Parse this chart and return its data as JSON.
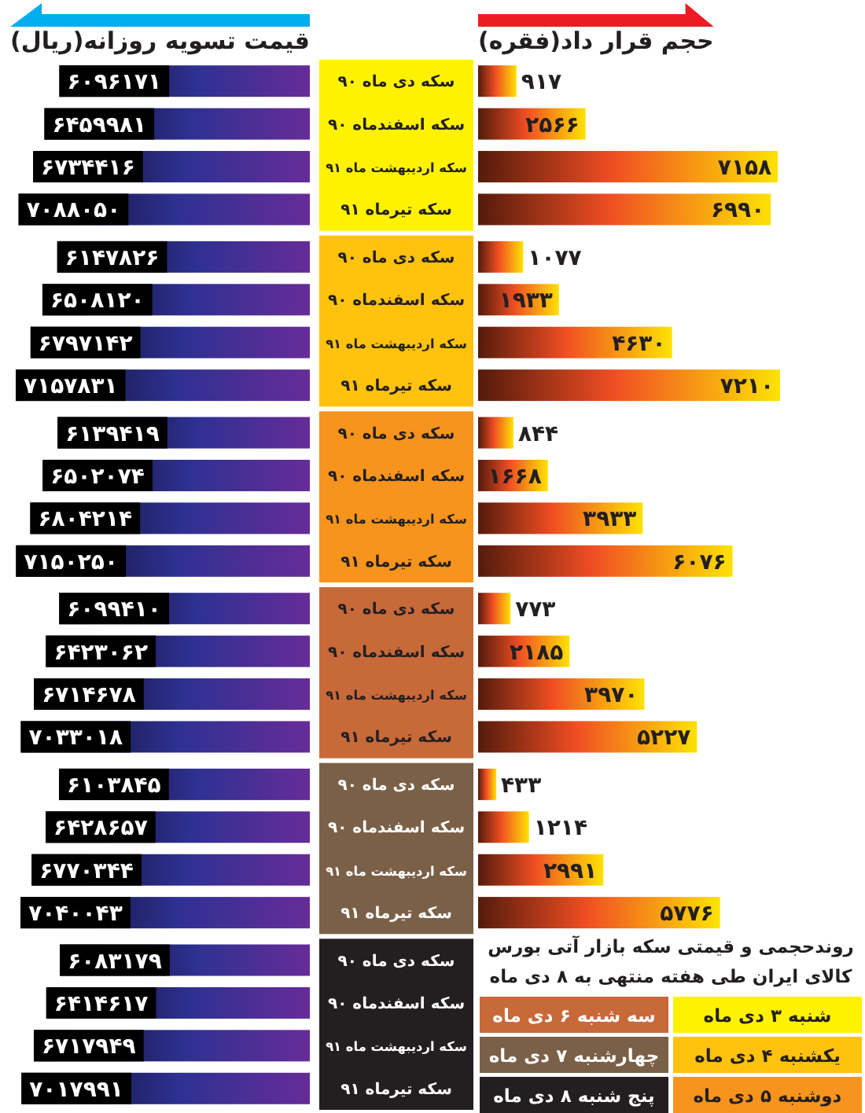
{
  "chart_data": [
    {
      "type": "bar",
      "orientation": "horizontal",
      "title": "قیمت تسویه روزانه(ریال)",
      "color": "#2e3192",
      "tick_labels": false,
      "categories": [
        "سکه دی ماه ۹۰",
        "سکه اسفندماه ۹۰",
        "سکه اردیبهشت ماه ۹۱",
        "سکه تیرماه ۹۱",
        "سکه دی ماه ۹۰",
        "سکه اسفندماه ۹۰",
        "سکه اردیبهشت ماه ۹۱",
        "سکه تیرماه ۹۱",
        "سکه دی ماه ۹۰",
        "سکه اسفندماه ۹۰",
        "سکه اردیبهشت ماه ۹۱",
        "سکه تیرماه ۹۱",
        "سکه دی ماه ۹۰",
        "سکه اسفندماه ۹۰",
        "سکه اردیبهشت ماه ۹۱",
        "سکه تیرماه ۹۱",
        "سکه دی ماه ۹۰",
        "سکه اسفندماه ۹۰",
        "سکه اردیبهشت ماه ۹۱",
        "سکه تیرماه ۹۱",
        "سکه دی ماه ۹۰",
        "سکه اسفندماه ۹۰",
        "سکه اردیبهشت ماه ۹۱",
        "سکه تیرماه ۹۱"
      ],
      "values": [
        6096171,
        6459981,
        6734416,
        7088050,
        6147826,
        6508120,
        6797142,
        7157831,
        6139419,
        6502074,
        6804214,
        7150250,
        6099410,
        6423062,
        6714678,
        7033018,
        6103845,
        6428657,
        6770344,
        7040043,
        6083179,
        6414617,
        6717949,
        7017991
      ],
      "value_labels": [
        "۶۰۹۶۱۷۱",
        "۶۴۵۹۹۸۱",
        "۶۷۳۴۴۱۶",
        "۷۰۸۸۰۵۰",
        "۶۱۴۷۸۲۶",
        "۶۵۰۸۱۲۰",
        "۶۷۹۷۱۴۲",
        "۷۱۵۷۸۳۱",
        "۶۱۳۹۴۱۹",
        "۶۵۰۲۰۷۴",
        "۶۸۰۴۲۱۴",
        "۷۱۵۰۲۵۰",
        "۶۰۹۹۴۱۰",
        "۶۴۲۳۰۶۲",
        "۶۷۱۴۶۷۸",
        "۷۰۳۳۰۱۸",
        "۶۱۰۳۸۴۵",
        "۶۴۲۸۶۵۷",
        "۶۷۷۰۳۴۴",
        "۷۰۴۰۰۴۳",
        "۶۰۸۳۱۷۹",
        "۶۴۱۴۶۱۷",
        "۶۷۱۷۹۴۹",
        "۷۰۱۷۹۹۱"
      ]
    },
    {
      "type": "bar",
      "orientation": "horizontal",
      "title": "حجم قرار داد(فقره)",
      "color": "#f04e23",
      "tick_labels": "y",
      "categories": [
        "سکه دی ماه ۹۰",
        "سکه اسفندماه ۹۰",
        "سکه اردیبهشت ماه ۹۱",
        "سکه تیرماه ۹۱",
        "سکه دی ماه ۹۰",
        "سکه اسفندماه ۹۰",
        "سکه اردیبهشت ماه ۹۱",
        "سکه تیرماه ۹۱",
        "سکه دی ماه ۹۰",
        "سکه اسفندماه ۹۰",
        "سکه اردیبهشت ماه ۹۱",
        "سکه تیرماه ۹۱",
        "سکه دی ماه ۹۰",
        "سکه اسفندماه ۹۰",
        "سکه اردیبهشت ماه ۹۱",
        "سکه تیرماه ۹۱",
        "سکه دی ماه ۹۰",
        "سکه اسفندماه ۹۰",
        "سکه اردیبهشت ماه ۹۱",
        "سکه تیرماه ۹۱",
        "سکه دی ماه ۹۰",
        "سکه اسفندماه ۹۰",
        "سکه اردیبهشت ماه ۹۱",
        "سکه تیرماه ۹۱"
      ],
      "values": [
        917,
        2566,
        7158,
        6990,
        1077,
        1933,
        4630,
        7210,
        844,
        1668,
        3933,
        6076,
        773,
        2185,
        3970,
        5227,
        433,
        1214,
        2991,
        5776,
        null,
        null,
        null,
        null
      ],
      "value_labels": [
        "۹۱۷",
        "۲۵۶۶",
        "۷۱۵۸",
        "۶۹۹۰",
        "۱۰۷۷",
        "۱۹۳۳",
        "۴۶۳۰",
        "۷۲۱۰",
        "۸۴۴",
        "۱۶۶۸",
        "۳۹۳۳",
        "۶۰۷۶",
        "۷۷۳",
        "۲۱۸۵",
        "۳۹۷۰",
        "۵۲۲۷",
        "۴۳۳",
        "۱۲۱۴",
        "۲۹۹۱",
        "۵۷۷۶",
        null,
        null,
        null,
        null
      ]
    },
    {
      "type": "other",
      "title": "روندحجمی و قیمتی سکه بازار آتی بورس کالای ایران طی هفته منتهی به ۸ دی ماه",
      "categories": [
        "شنبه ۳ دی ماه",
        "یکشنبه ۴ دی ماه",
        "دوشنبه ۵ دی ماه",
        "سه شنبه ۶ دی ماه",
        "چهارشنبه ۷ دی ماه",
        "پنج شنبه ۸ دی ماه"
      ],
      "colors": [
        "#fff200",
        "#ffc20e",
        "#f7941d",
        "#c8693a",
        "#7b6048",
        "#231f20"
      ]
    }
  ]
}
